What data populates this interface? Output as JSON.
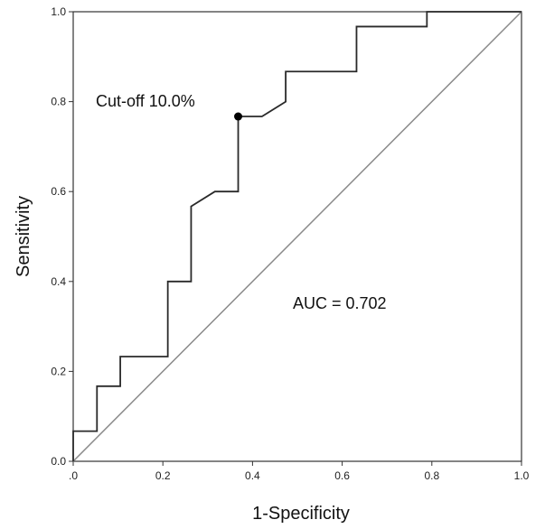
{
  "chart_data": {
    "type": "line",
    "title": "",
    "xlabel": "1-Specificity",
    "ylabel": "Sensitivity",
    "xlim": [
      0.0,
      1.0
    ],
    "ylim": [
      0.0,
      1.0
    ],
    "x_ticks": [
      0.0,
      0.2,
      0.4,
      0.6,
      0.8,
      1.0
    ],
    "y_ticks": [
      0.0,
      0.2,
      0.4,
      0.6,
      0.8,
      1.0
    ],
    "x_tick_labels": [
      ".0",
      "0.2",
      "0.4",
      "0.6",
      "0.8",
      "1.0"
    ],
    "y_tick_labels": [
      "0.0",
      "0.2",
      "0.4",
      "0.6",
      "0.8",
      "1.0"
    ],
    "grid": false,
    "series": [
      {
        "x": [
          0.0,
          0.0,
          0.053,
          0.053,
          0.105,
          0.105,
          0.211,
          0.211,
          0.263,
          0.263,
          0.316,
          0.368,
          0.368,
          0.421,
          0.474,
          0.474,
          0.632,
          0.632,
          0.789,
          0.789,
          1.0
        ],
        "y": [
          0.0,
          0.067,
          0.067,
          0.167,
          0.167,
          0.233,
          0.233,
          0.4,
          0.4,
          0.567,
          0.6,
          0.6,
          0.767,
          0.767,
          0.8,
          0.867,
          0.867,
          0.967,
          0.967,
          1.0,
          1.0
        ]
      },
      {
        "x": [
          0.0,
          1.0
        ],
        "y": [
          0.0,
          1.0
        ]
      }
    ],
    "highlight_point": {
      "x": 0.368,
      "y": 0.767
    },
    "annotations": {
      "cutoff": "Cut-off 10.0%",
      "auc": "AUC = 0.702"
    }
  }
}
